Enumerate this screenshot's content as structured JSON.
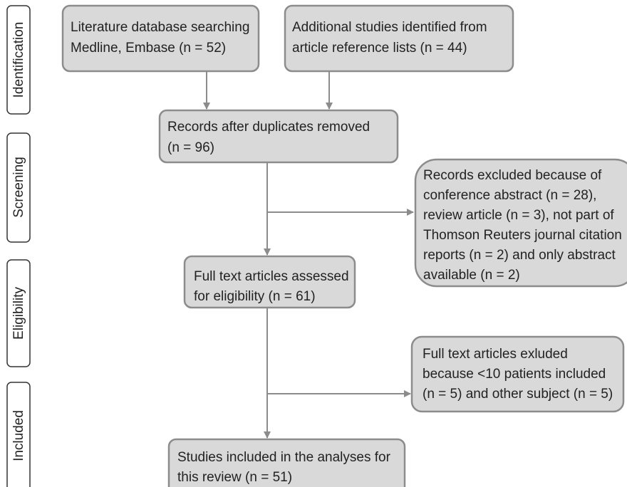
{
  "stages": [
    "Identification",
    "Screening",
    "Eligibility",
    "Included"
  ],
  "nodes": [
    {
      "lines": [
        "Literature database searching",
        "Medline, Embase (n = 52)"
      ]
    },
    {
      "lines": [
        "Additional studies identified from",
        "article reference lists (n = 44)"
      ]
    },
    {
      "lines": [
        "Records after duplicates removed",
        "(n = 96)"
      ]
    },
    {
      "lines": [
        "Records excluded because of",
        "conference abstract (n = 28),",
        "review article (n = 3), not part of",
        "Thomson Reuters journal citation",
        "reports (n = 2) and only abstract",
        "available (n = 2)"
      ]
    },
    {
      "lines": [
        "Full text articles assessed",
        "for eligibility (n = 61)"
      ]
    },
    {
      "lines": [
        "Full text articles exluded",
        "because <10 patients included",
        "(n = 5) and other subject (n = 5)"
      ]
    },
    {
      "lines": [
        "Studies included in the analyses for",
        "this review (n = 51)"
      ]
    }
  ]
}
